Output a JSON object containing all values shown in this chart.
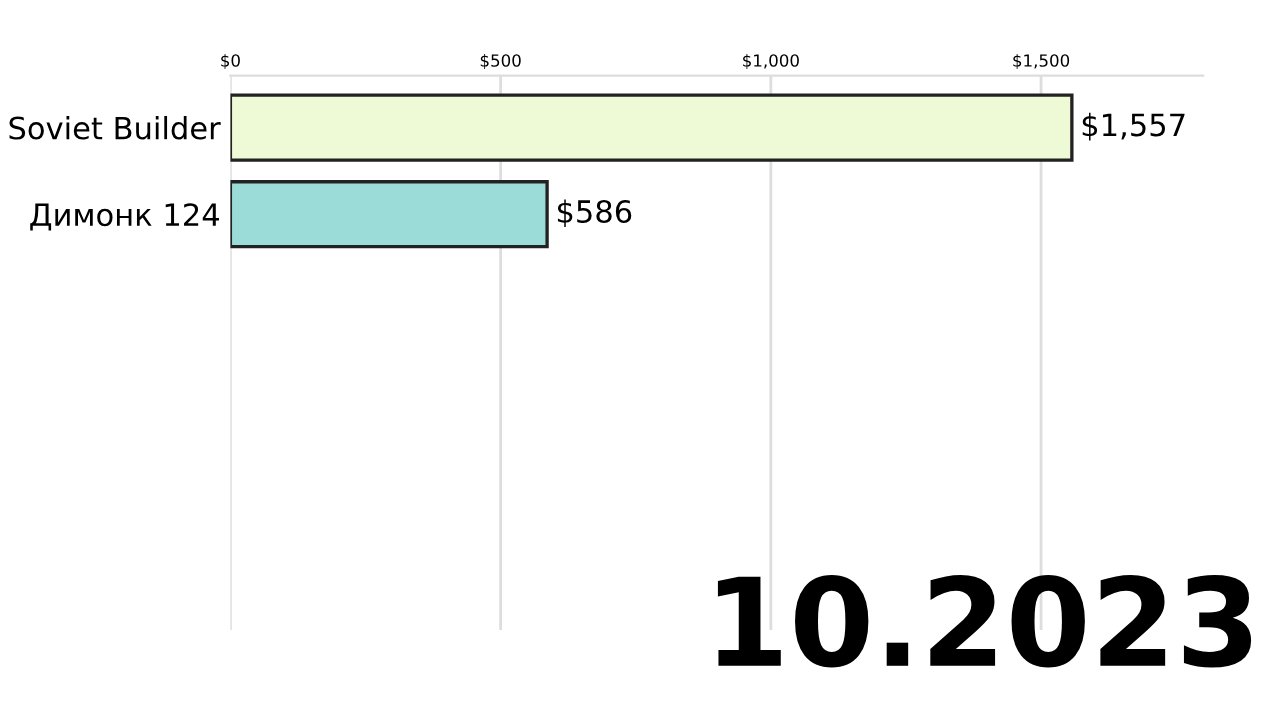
{
  "chart_data": {
    "type": "bar",
    "orientation": "horizontal",
    "categories": [
      "Soviet Builder",
      "Димонк 124"
    ],
    "values": [
      1557,
      586
    ],
    "colors": [
      "#eefad5",
      "#9cdcd8"
    ],
    "value_labels": [
      "$1,557",
      "$586"
    ],
    "xlim": [
      0,
      1800
    ],
    "xticks": [
      {
        "value": 0,
        "label": "$0"
      },
      {
        "value": 500,
        "label": "$500"
      },
      {
        "value": 1000,
        "label": "$1,000"
      },
      {
        "value": 1500,
        "label": "$1,500"
      }
    ],
    "grid": "x",
    "annotations": [
      "10.2023"
    ]
  }
}
